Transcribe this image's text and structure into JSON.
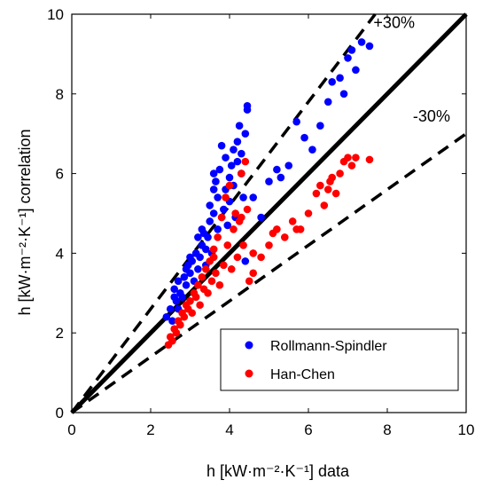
{
  "chart_data": {
    "type": "scatter",
    "title": "",
    "xlabel": "h [kW·m⁻²·K⁻¹]   data",
    "ylabel": "h [kW·m⁻²·K⁻¹]   correlation",
    "xlim": [
      0,
      10
    ],
    "ylim": [
      0,
      10
    ],
    "xticks": [
      "0",
      "2",
      "4",
      "6",
      "8",
      "10"
    ],
    "yticks": [
      "0",
      "2",
      "4",
      "6",
      "8",
      "10"
    ],
    "grid": false,
    "legend_position": "bottom-right",
    "reference_lines": [
      {
        "label": "",
        "slope": 1.0,
        "style": "solid"
      },
      {
        "label": "+30%",
        "slope": 1.3,
        "style": "dashed"
      },
      {
        "label": "-30%",
        "slope": 0.7,
        "style": "dashed"
      }
    ],
    "series": [
      {
        "name": "Rollmann-Spindler",
        "color": "#0000ff",
        "points": [
          [
            2.4,
            2.4
          ],
          [
            2.5,
            2.6
          ],
          [
            2.55,
            2.3
          ],
          [
            2.6,
            2.9
          ],
          [
            2.6,
            3.1
          ],
          [
            2.65,
            2.8
          ],
          [
            2.7,
            3.3
          ],
          [
            2.7,
            2.6
          ],
          [
            2.75,
            3.0
          ],
          [
            2.8,
            2.9
          ],
          [
            2.85,
            3.4
          ],
          [
            2.9,
            3.2
          ],
          [
            2.95,
            3.7
          ],
          [
            3.0,
            3.5
          ],
          [
            3.05,
            3.8
          ],
          [
            3.1,
            3.3
          ],
          [
            3.15,
            4.0
          ],
          [
            3.2,
            3.6
          ],
          [
            3.25,
            3.9
          ],
          [
            3.3,
            4.2
          ],
          [
            3.35,
            4.5
          ],
          [
            3.4,
            4.1
          ],
          [
            3.4,
            3.7
          ],
          [
            3.45,
            4.4
          ],
          [
            3.5,
            4.8
          ],
          [
            3.5,
            5.2
          ],
          [
            3.55,
            4.0
          ],
          [
            3.6,
            5.6
          ],
          [
            3.6,
            5.0
          ],
          [
            3.65,
            5.8
          ],
          [
            3.7,
            4.6
          ],
          [
            3.7,
            5.4
          ],
          [
            3.75,
            6.1
          ],
          [
            3.8,
            4.9
          ],
          [
            3.8,
            6.7
          ],
          [
            3.85,
            5.1
          ],
          [
            3.9,
            6.4
          ],
          [
            3.95,
            4.7
          ],
          [
            4.0,
            5.9
          ],
          [
            4.0,
            5.3
          ],
          [
            4.05,
            6.2
          ],
          [
            4.1,
            5.7
          ],
          [
            4.15,
            4.9
          ],
          [
            4.2,
            6.8
          ],
          [
            4.2,
            6.3
          ],
          [
            4.25,
            7.2
          ],
          [
            4.3,
            6.0
          ],
          [
            4.3,
            6.5
          ],
          [
            4.35,
            5.4
          ],
          [
            4.4,
            7.0
          ],
          [
            4.45,
            7.7
          ],
          [
            4.45,
            7.6
          ],
          [
            4.4,
            3.8
          ],
          [
            4.6,
            5.4
          ],
          [
            4.8,
            4.9
          ],
          [
            5.0,
            5.8
          ],
          [
            5.2,
            6.1
          ],
          [
            5.3,
            5.9
          ],
          [
            5.5,
            6.2
          ],
          [
            5.7,
            7.3
          ],
          [
            5.9,
            6.9
          ],
          [
            6.1,
            6.6
          ],
          [
            6.3,
            7.2
          ],
          [
            6.5,
            7.8
          ],
          [
            6.6,
            8.3
          ],
          [
            6.8,
            8.4
          ],
          [
            6.9,
            8.0
          ],
          [
            7.0,
            8.9
          ],
          [
            7.1,
            9.1
          ],
          [
            7.2,
            8.6
          ],
          [
            7.35,
            9.3
          ],
          [
            7.55,
            9.2
          ],
          [
            3.0,
            3.9
          ],
          [
            3.2,
            4.4
          ],
          [
            3.6,
            6.0
          ],
          [
            3.9,
            5.6
          ],
          [
            4.1,
            6.6
          ],
          [
            3.3,
            4.6
          ],
          [
            2.9,
            3.6
          ]
        ]
      },
      {
        "name": "Han-Chen",
        "color": "#ff0000",
        "points": [
          [
            2.45,
            1.7
          ],
          [
            2.5,
            1.9
          ],
          [
            2.55,
            1.8
          ],
          [
            2.6,
            2.1
          ],
          [
            2.65,
            2.0
          ],
          [
            2.7,
            2.3
          ],
          [
            2.75,
            2.2
          ],
          [
            2.8,
            2.5
          ],
          [
            2.85,
            2.4
          ],
          [
            2.9,
            2.7
          ],
          [
            2.95,
            2.6
          ],
          [
            3.0,
            2.8
          ],
          [
            3.05,
            2.5
          ],
          [
            3.1,
            3.0
          ],
          [
            3.15,
            2.9
          ],
          [
            3.2,
            3.2
          ],
          [
            3.25,
            2.7
          ],
          [
            3.3,
            3.4
          ],
          [
            3.35,
            3.1
          ],
          [
            3.4,
            3.6
          ],
          [
            3.45,
            3.0
          ],
          [
            3.5,
            3.8
          ],
          [
            3.55,
            3.3
          ],
          [
            3.6,
            4.1
          ],
          [
            3.65,
            3.5
          ],
          [
            3.7,
            4.4
          ],
          [
            3.75,
            3.2
          ],
          [
            3.8,
            4.9
          ],
          [
            3.85,
            3.7
          ],
          [
            3.9,
            5.4
          ],
          [
            3.95,
            4.2
          ],
          [
            4.0,
            5.7
          ],
          [
            4.05,
            3.6
          ],
          [
            4.1,
            4.6
          ],
          [
            4.15,
            5.0
          ],
          [
            4.2,
            3.9
          ],
          [
            4.25,
            4.8
          ],
          [
            4.3,
            6.0
          ],
          [
            4.35,
            4.2
          ],
          [
            4.4,
            6.3
          ],
          [
            4.45,
            5.1
          ],
          [
            4.5,
            3.3
          ],
          [
            4.6,
            3.5
          ],
          [
            4.8,
            3.9
          ],
          [
            5.0,
            4.2
          ],
          [
            5.2,
            4.6
          ],
          [
            5.4,
            4.4
          ],
          [
            5.6,
            4.8
          ],
          [
            5.8,
            4.6
          ],
          [
            6.0,
            5.0
          ],
          [
            6.2,
            5.5
          ],
          [
            6.4,
            5.2
          ],
          [
            6.5,
            5.6
          ],
          [
            6.6,
            5.9
          ],
          [
            6.7,
            5.5
          ],
          [
            6.8,
            6.0
          ],
          [
            6.9,
            6.3
          ],
          [
            7.0,
            6.4
          ],
          [
            7.1,
            6.2
          ],
          [
            7.2,
            6.4
          ],
          [
            7.55,
            6.35
          ],
          [
            4.3,
            4.9
          ],
          [
            3.6,
            3.9
          ],
          [
            4.6,
            4.0
          ],
          [
            5.1,
            4.5
          ],
          [
            5.7,
            4.6
          ],
          [
            6.3,
            5.7
          ],
          [
            6.55,
            5.8
          ]
        ]
      }
    ]
  }
}
